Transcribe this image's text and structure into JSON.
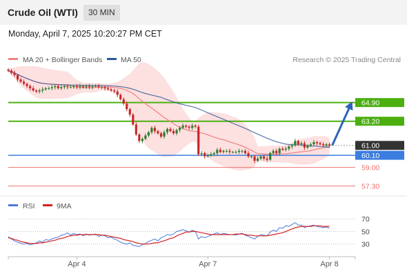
{
  "header": {
    "title": "Crude Oil (WTI)",
    "timeframe": "30 MIN"
  },
  "chart_info": {
    "datetime": "Monday, April 7, 2025 10:20:27 PM CET",
    "copyright": "Research © 2025 Trading Central"
  },
  "colors": {
    "up_candle": "#2e7d32",
    "down_candle": "#c62828",
    "ma20": "#f08080",
    "band_fill": "#fde0e0",
    "ma50": "#2a5599",
    "resistance": "#4caf10",
    "pivot": "#3b7de0",
    "support": "#f07070",
    "last_price_bg": "#333333",
    "arrow": "#2a64b8",
    "rsi": "#4a78d8",
    "rsi_ma": "#d42020"
  },
  "chart_data": [
    {
      "type": "candlestick",
      "legend": [
        {
          "label": "MA 20 + Bollinger Bands",
          "color": "#f08080"
        },
        {
          "label": "MA 50",
          "color": "#2a5599"
        }
      ],
      "x_ticks": [
        "Apr 4",
        "Apr 7",
        "Apr 8"
      ],
      "ylim": [
        56.4,
        67.2
      ],
      "levels": [
        {
          "value": 64.9,
          "label": "64.90",
          "kind": "resistance"
        },
        {
          "value": 63.2,
          "label": "63.20",
          "kind": "resistance"
        },
        {
          "value": 61.0,
          "label": "61.00",
          "kind": "last"
        },
        {
          "value": 60.1,
          "label": "60.10",
          "kind": "pivot"
        },
        {
          "value": 59.0,
          "label": "59.00",
          "kind": "support"
        },
        {
          "value": 57.3,
          "label": "57.30",
          "kind": "support"
        }
      ],
      "close": [
        67.8,
        67.6,
        67.4,
        67.0,
        66.8,
        66.6,
        66.4,
        66.2,
        66.0,
        65.9,
        66.0,
        66.1,
        66.2,
        66.2,
        66.3,
        66.4,
        66.2,
        66.3,
        66.4,
        66.3,
        66.3,
        66.4,
        66.3,
        66.4,
        66.3,
        66.4,
        66.3,
        66.4,
        66.4,
        66.3,
        66.3,
        66.2,
        66.1,
        66.0,
        65.9,
        65.6,
        65.2,
        64.8,
        64.3,
        63.8,
        62.9,
        62.0,
        61.4,
        61.6,
        61.9,
        62.2,
        62.6,
        62.3,
        62.1,
        61.8,
        62.2,
        62.5,
        62.3,
        62.1,
        62.4,
        62.6,
        62.8,
        62.7,
        62.6,
        62.8,
        62.7,
        60.2,
        60.3,
        60.0,
        60.1,
        60.2,
        60.3,
        60.6,
        60.4,
        60.5,
        60.5,
        60.4,
        60.4,
        60.4,
        60.5,
        60.5,
        60.3,
        60.0,
        60.0,
        59.6,
        59.8,
        60.0,
        59.8,
        59.7,
        60.3,
        60.5,
        60.3,
        60.7,
        60.6,
        60.7,
        60.9,
        61.0,
        61.4,
        61.1,
        61.2,
        60.8,
        61.0,
        61.1,
        61.3,
        61.2,
        61.1,
        61.0,
        61.1,
        61.0
      ]
    },
    {
      "type": "line",
      "name_label": "RSI",
      "legend": [
        {
          "label": "RSI",
          "color": "#4a78d8"
        },
        {
          "label": "9MA",
          "color": "#d42020"
        }
      ],
      "y_ticks": [
        70,
        50,
        30
      ],
      "ylim": [
        10,
        80
      ],
      "rsi": [
        42,
        38,
        35,
        33,
        31,
        30,
        31,
        29,
        30,
        32,
        35,
        33,
        37,
        36,
        38,
        40,
        41,
        44,
        45,
        48,
        44,
        47,
        45,
        46,
        43,
        46,
        44,
        45,
        46,
        42,
        44,
        43,
        40,
        41,
        38,
        36,
        33,
        31,
        30,
        32,
        28,
        27,
        26,
        29,
        31,
        34,
        36,
        38,
        35,
        40,
        42,
        45,
        44,
        46,
        50,
        51,
        53,
        51,
        49,
        52,
        50,
        38,
        42,
        40,
        42,
        44,
        46,
        48,
        45,
        47,
        46,
        45,
        45,
        44,
        46,
        47,
        44,
        42,
        40,
        38,
        42,
        45,
        44,
        43,
        49,
        52,
        50,
        56,
        55,
        59,
        58,
        61,
        64,
        60,
        60,
        56,
        58,
        59,
        60,
        58,
        57,
        56,
        57,
        55
      ],
      "ma9": [
        40,
        39,
        37,
        36,
        34,
        33,
        32,
        31,
        31,
        31,
        32,
        32,
        33,
        34,
        35,
        36,
        38,
        39,
        40,
        42,
        43,
        44,
        44,
        45,
        45,
        45,
        45,
        45,
        45,
        45,
        44,
        44,
        43,
        42,
        41,
        40,
        39,
        37,
        36,
        35,
        34,
        32,
        31,
        30,
        30,
        30,
        31,
        32,
        32,
        34,
        35,
        37,
        39,
        40,
        43,
        45,
        47,
        49,
        49,
        50,
        50,
        49,
        48,
        47,
        46,
        45,
        45,
        45,
        45,
        45,
        45,
        45,
        45,
        46,
        46,
        46,
        45,
        44,
        44,
        43,
        43,
        43,
        43,
        43,
        44,
        45,
        46,
        47,
        48,
        50,
        52,
        54,
        56,
        57,
        58,
        58,
        58,
        58,
        59,
        59,
        59,
        58,
        58,
        58
      ]
    }
  ]
}
